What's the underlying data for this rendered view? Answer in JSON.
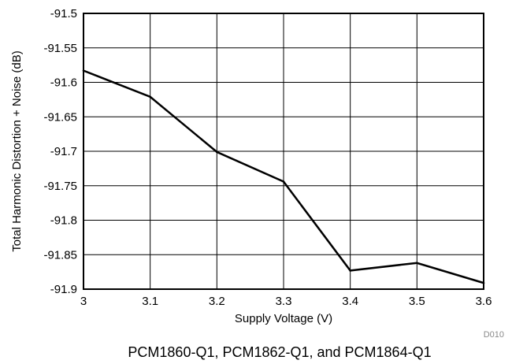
{
  "chart_data": {
    "type": "line",
    "x": [
      3.0,
      3.1,
      3.2,
      3.3,
      3.4,
      3.5,
      3.6
    ],
    "series": [
      {
        "values": [
          -91.583,
          -91.621,
          -91.701,
          -91.744,
          -91.873,
          -91.862,
          -91.891
        ]
      }
    ],
    "xlabel": "Supply Voltage (V)",
    "ylabel": "Total Harmonic Distortion + Noise (dB)",
    "xlim": [
      3.0,
      3.6
    ],
    "ylim": [
      -91.9,
      -91.5
    ],
    "xticks": [
      3,
      3.1,
      3.2,
      3.3,
      3.4,
      3.5,
      3.6
    ],
    "xtick_labels": [
      "3",
      "3.1",
      "3.2",
      "3.3",
      "3.4",
      "3.5",
      "3.6"
    ],
    "yticks": [
      -91.5,
      -91.55,
      -91.6,
      -91.65,
      -91.7,
      -91.75,
      -91.8,
      -91.85,
      -91.9
    ],
    "ytick_labels": [
      "-91.5",
      "-91.55",
      "-91.6",
      "-91.65",
      "-91.7",
      "-91.75",
      "-91.8",
      "-91.85",
      "-91.9"
    ],
    "grid": true,
    "line_color": "#000000",
    "grid_color": "#000000"
  },
  "figure_code": "D010",
  "caption": "PCM1860-Q1, PCM1862-Q1, and PCM1864-Q1"
}
